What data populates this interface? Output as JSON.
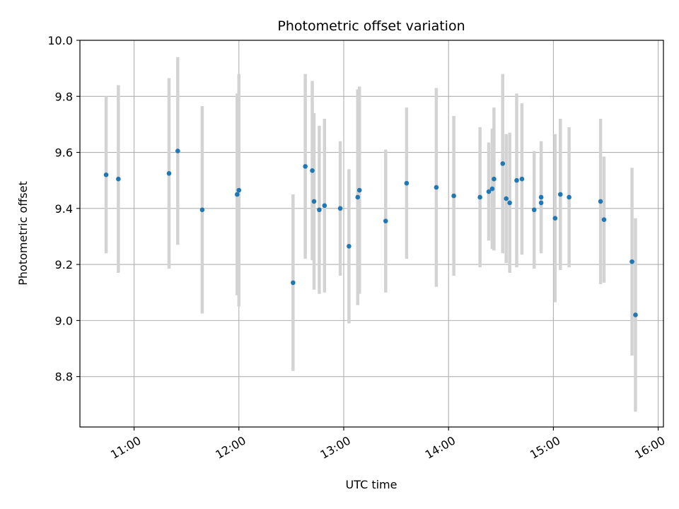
{
  "chart_data": {
    "type": "scatter",
    "title": "Photometric offset variation",
    "xlabel": "UTC time",
    "ylabel": "Photometric offset",
    "x_unit": "hours UTC",
    "xlim": [
      "10:29",
      "16:03"
    ],
    "ylim": [
      8.62,
      10.0
    ],
    "x_ticks": [
      "11:00",
      "12:00",
      "13:00",
      "14:00",
      "15:00",
      "16:00"
    ],
    "y_ticks": [
      "8.8",
      "9.0",
      "9.2",
      "9.4",
      "9.6",
      "9.8",
      "10.0"
    ],
    "grid": true,
    "marker_color": "#1f77b4",
    "errorbar_color": "#d3d3d3",
    "points": [
      {
        "time": "10:44",
        "value": 9.52,
        "err": 0.28
      },
      {
        "time": "10:51",
        "value": 9.505,
        "err": 0.335
      },
      {
        "time": "11:20",
        "value": 9.525,
        "err": 0.34
      },
      {
        "time": "11:25",
        "value": 9.605,
        "err": 0.335
      },
      {
        "time": "11:39",
        "value": 9.395,
        "err": 0.37
      },
      {
        "time": "11:59",
        "value": 9.45,
        "err": 0.36
      },
      {
        "time": "12:00",
        "value": 9.465,
        "err": 0.415
      },
      {
        "time": "12:31",
        "value": 9.135,
        "err": 0.315
      },
      {
        "time": "12:38",
        "value": 9.55,
        "err": 0.33
      },
      {
        "time": "12:42",
        "value": 9.535,
        "err": 0.32
      },
      {
        "time": "12:43",
        "value": 9.425,
        "err": 0.315
      },
      {
        "time": "12:46",
        "value": 9.395,
        "err": 0.3
      },
      {
        "time": "12:49",
        "value": 9.41,
        "err": 0.31
      },
      {
        "time": "12:58",
        "value": 9.4,
        "err": 0.24
      },
      {
        "time": "13:03",
        "value": 9.265,
        "err": 0.275
      },
      {
        "time": "13:08",
        "value": 9.44,
        "err": 0.385
      },
      {
        "time": "13:09",
        "value": 9.465,
        "err": 0.37
      },
      {
        "time": "13:24",
        "value": 9.355,
        "err": 0.255
      },
      {
        "time": "13:36",
        "value": 9.49,
        "err": 0.27
      },
      {
        "time": "13:53",
        "value": 9.475,
        "err": 0.355
      },
      {
        "time": "14:03",
        "value": 9.445,
        "err": 0.285
      },
      {
        "time": "14:18",
        "value": 9.44,
        "err": 0.25
      },
      {
        "time": "14:23",
        "value": 9.46,
        "err": 0.175
      },
      {
        "time": "14:25",
        "value": 9.47,
        "err": 0.215
      },
      {
        "time": "14:26",
        "value": 9.505,
        "err": 0.255
      },
      {
        "time": "14:31",
        "value": 9.56,
        "err": 0.32
      },
      {
        "time": "14:33",
        "value": 9.435,
        "err": 0.23
      },
      {
        "time": "14:35",
        "value": 9.42,
        "err": 0.25
      },
      {
        "time": "14:39",
        "value": 9.5,
        "err": 0.31
      },
      {
        "time": "14:42",
        "value": 9.505,
        "err": 0.27
      },
      {
        "time": "14:49",
        "value": 9.395,
        "err": 0.21
      },
      {
        "time": "14:53",
        "value": 9.42,
        "err": 0.165
      },
      {
        "time": "14:53",
        "value": 9.44,
        "err": 0.2
      },
      {
        "time": "15:01",
        "value": 9.365,
        "err": 0.3
      },
      {
        "time": "15:04",
        "value": 9.45,
        "err": 0.27
      },
      {
        "time": "15:09",
        "value": 9.44,
        "err": 0.25
      },
      {
        "time": "15:27",
        "value": 9.425,
        "err": 0.295
      },
      {
        "time": "15:29",
        "value": 9.36,
        "err": 0.225
      },
      {
        "time": "15:45",
        "value": 9.21,
        "err": 0.335
      },
      {
        "time": "15:47",
        "value": 9.02,
        "err": 0.345
      }
    ]
  }
}
